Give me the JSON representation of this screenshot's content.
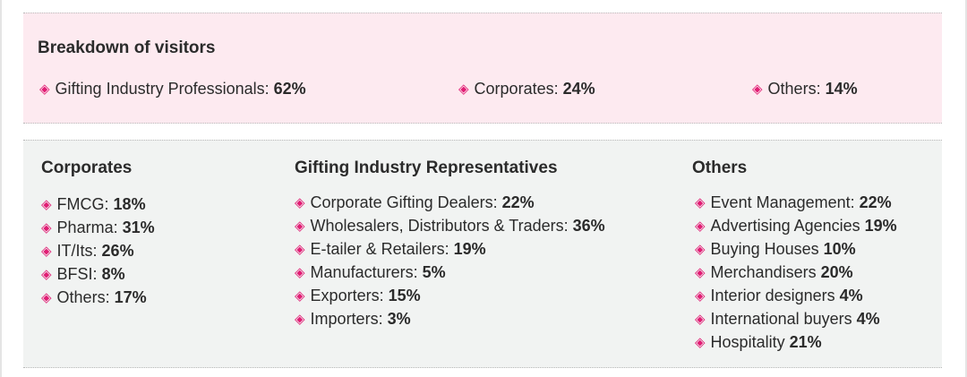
{
  "bullet_glyph": "◈",
  "accent_color": "#e11d74",
  "breakdown": {
    "title": "Breakdown of visitors",
    "items": [
      {
        "label": "Gifting Industry Professionals:",
        "value": "62%"
      },
      {
        "label": "Corporates:",
        "value": "24%"
      },
      {
        "label": "Others:",
        "value": "14%"
      }
    ]
  },
  "corporates": {
    "title": "Corporates",
    "items": [
      {
        "label": "FMCG:",
        "value": "18%"
      },
      {
        "label": "Pharma:",
        "value": "31%"
      },
      {
        "label": "IT/Its:",
        "value": "26%"
      },
      {
        "label": "BFSI:",
        "value": "8%"
      },
      {
        "label": "Others:",
        "value": "17%"
      }
    ]
  },
  "gifting": {
    "title": "Gifting Industry Representatives",
    "items": [
      {
        "label": "Corporate Gifting Dealers:",
        "value": "22%"
      },
      {
        "label": "Wholesalers, Distributors & Traders:",
        "value": "36%"
      },
      {
        "label": "E-tailer & Retailers:",
        "value": "19%"
      },
      {
        "label": "Manufacturers:",
        "value": "5%"
      },
      {
        "label": "Exporters:",
        "value": "15%"
      },
      {
        "label": "Importers:",
        "value": "3%"
      }
    ]
  },
  "others": {
    "title": "Others",
    "items": [
      {
        "label": "Event Management:",
        "value": "22%"
      },
      {
        "label": "Advertising Agencies",
        "value": "19%"
      },
      {
        "label": "Buying Houses",
        "value": "10%"
      },
      {
        "label": "Merchandisers",
        "value": "20%"
      },
      {
        "label": "Interior designers",
        "value": "4%"
      },
      {
        "label": "International buyers",
        "value": "4%"
      },
      {
        "label": "Hospitality",
        "value": "21%"
      }
    ]
  }
}
